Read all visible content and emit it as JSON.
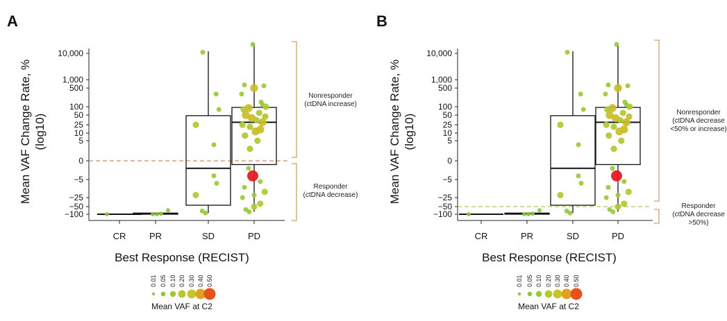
{
  "colors": {
    "bracket": "#c9a46a",
    "dashed_a": "#c98a6a",
    "dashed_b": "#b5c46a",
    "highlight": "#e8141e"
  },
  "legend": {
    "title": "Mean VAF at C2",
    "sizes": [
      {
        "label": "0.01",
        "color": "#8cc63f"
      },
      {
        "label": "0.05",
        "color": "#8cc63f"
      },
      {
        "label": "0.10",
        "color": "#9ac93b"
      },
      {
        "label": "0.20",
        "color": "#b5c92f"
      },
      {
        "label": "0.30",
        "color": "#cbc12a"
      },
      {
        "label": "0.40",
        "color": "#e0a020"
      },
      {
        "label": "0.50",
        "color": "#e8501e"
      }
    ]
  },
  "chart_data": [
    {
      "type": "box",
      "panel_label": "A",
      "ylabel_lines": [
        "Mean VAF Change Rate, %",
        "(log10)"
      ],
      "xlabel": "Best Response (RECIST)",
      "categories": [
        "CR",
        "PR",
        "SD",
        "PD"
      ],
      "yticks": [
        "10,000",
        "1,000",
        "500",
        "100",
        "50",
        "25",
        "10",
        "5",
        "0",
        "−5",
        "−25",
        "−50",
        "−100"
      ],
      "threshold": {
        "value": 0,
        "tick_label": "0"
      },
      "annotations": [
        {
          "group": "nonresponder",
          "lines": [
            "Nonresponder",
            "(ctDNA increase)"
          ]
        },
        {
          "group": "responder",
          "lines": [
            "Responder",
            "(ctDNA decrease)"
          ]
        }
      ],
      "boxes": [
        {
          "category": "CR",
          "q1": -100,
          "median": -100,
          "q3": -100,
          "whisker_low": -100,
          "whisker_high": -100
        },
        {
          "category": "PR",
          "q1": -100,
          "median": -97,
          "q3": -90,
          "whisker_low": -100,
          "whisker_high": -88
        },
        {
          "category": "SD",
          "q1": -45,
          "median": -2,
          "q3": 48,
          "whisker_low": -90,
          "whisker_high": 12000
        },
        {
          "category": "PD",
          "q1": -1,
          "median": 30,
          "q3": 95,
          "whisker_low": -80,
          "whisker_high": 22000
        }
      ],
      "points": [
        {
          "category": "CR",
          "value": -100,
          "vaf": 0.05,
          "jitter": -0.45
        },
        {
          "category": "PR",
          "value": -100,
          "vaf": 0.05,
          "jitter": -0.1
        },
        {
          "category": "PR",
          "value": -95,
          "vaf": 0.05,
          "jitter": 0.2
        },
        {
          "category": "PR",
          "value": -70,
          "vaf": 0.05,
          "jitter": 0.45
        },
        {
          "category": "PR",
          "value": -100,
          "vaf": 0.05,
          "jitter": 0.05
        },
        {
          "category": "SD",
          "value": 11000,
          "vaf": 0.1,
          "jitter": -0.2
        },
        {
          "category": "SD",
          "value": 300,
          "vaf": 0.1,
          "jitter": 0.28
        },
        {
          "category": "SD",
          "value": 80,
          "vaf": 0.1,
          "jitter": 0.38
        },
        {
          "category": "SD",
          "value": 25,
          "vaf": 0.2,
          "jitter": -0.45
        },
        {
          "category": "SD",
          "value": 4,
          "vaf": 0.1,
          "jitter": 0.2
        },
        {
          "category": "SD",
          "value": -4,
          "vaf": 0.1,
          "jitter": 0.2
        },
        {
          "category": "SD",
          "value": -7,
          "vaf": 0.1,
          "jitter": 0.3
        },
        {
          "category": "SD",
          "value": -20,
          "vaf": 0.2,
          "jitter": -0.45
        },
        {
          "category": "SD",
          "value": -75,
          "vaf": 0.1,
          "jitter": -0.22
        },
        {
          "category": "SD",
          "value": -90,
          "vaf": 0.1,
          "jitter": -0.1
        },
        {
          "category": "PD",
          "value": 22000,
          "vaf": 0.1,
          "jitter": -0.05
        },
        {
          "category": "PD",
          "value": 650,
          "vaf": 0.1,
          "jitter": -0.35
        },
        {
          "category": "PD",
          "value": 500,
          "vaf": 0.3,
          "jitter": 0.0
        },
        {
          "category": "PD",
          "value": 600,
          "vaf": 0.1,
          "jitter": 0.35
        },
        {
          "category": "PD",
          "value": 300,
          "vaf": 0.1,
          "jitter": -0.45
        },
        {
          "category": "PD",
          "value": 150,
          "vaf": 0.1,
          "jitter": 0.25
        },
        {
          "category": "PD",
          "value": 120,
          "vaf": 0.1,
          "jitter": 0.3
        },
        {
          "category": "PD",
          "value": 100,
          "vaf": 0.2,
          "jitter": 0.42
        },
        {
          "category": "PD",
          "value": 90,
          "vaf": 0.3,
          "jitter": -0.2
        },
        {
          "category": "PD",
          "value": 80,
          "vaf": 0.2,
          "jitter": -0.38
        },
        {
          "category": "PD",
          "value": 60,
          "vaf": 0.2,
          "jitter": 0.18
        },
        {
          "category": "PD",
          "value": 50,
          "vaf": 0.3,
          "jitter": -0.3
        },
        {
          "category": "PD",
          "value": 45,
          "vaf": 0.2,
          "jitter": 0.4
        },
        {
          "category": "PD",
          "value": 40,
          "vaf": 0.3,
          "jitter": -0.08
        },
        {
          "category": "PD",
          "value": 35,
          "vaf": 0.2,
          "jitter": 0.08
        },
        {
          "category": "PD",
          "value": 30,
          "vaf": 0.3,
          "jitter": 0.3
        },
        {
          "category": "PD",
          "value": 25,
          "vaf": 0.2,
          "jitter": -0.42
        },
        {
          "category": "PD",
          "value": 20,
          "vaf": 0.2,
          "jitter": -0.15
        },
        {
          "category": "PD",
          "value": 15,
          "vaf": 0.3,
          "jitter": 0.22
        },
        {
          "category": "PD",
          "value": 12,
          "vaf": 0.3,
          "jitter": 0.05
        },
        {
          "category": "PD",
          "value": 8,
          "vaf": 0.2,
          "jitter": -0.33
        },
        {
          "category": "PD",
          "value": 5,
          "vaf": 0.2,
          "jitter": 0.12
        },
        {
          "category": "PD",
          "value": 3,
          "vaf": 0.2,
          "jitter": -0.15
        },
        {
          "category": "PD",
          "value": -2,
          "vaf": 0.1,
          "jitter": -0.2
        },
        {
          "category": "PD",
          "value": -4,
          "vaf": 0.5,
          "jitter": -0.05,
          "highlight": true
        },
        {
          "category": "PD",
          "value": -6,
          "vaf": 0.1,
          "jitter": 0.22
        },
        {
          "category": "PD",
          "value": -10,
          "vaf": 0.1,
          "jitter": -0.35
        },
        {
          "category": "PD",
          "value": -15,
          "vaf": 0.2,
          "jitter": 0.38
        },
        {
          "category": "PD",
          "value": -20,
          "vaf": 0.1,
          "jitter": 0.0
        },
        {
          "category": "PD",
          "value": -25,
          "vaf": 0.1,
          "jitter": -0.42
        },
        {
          "category": "PD",
          "value": -40,
          "vaf": 0.2,
          "jitter": 0.22
        },
        {
          "category": "PD",
          "value": -50,
          "vaf": 0.2,
          "jitter": 0.0
        },
        {
          "category": "PD",
          "value": -65,
          "vaf": 0.1,
          "jitter": -0.3
        },
        {
          "category": "PD",
          "value": -80,
          "vaf": 0.1,
          "jitter": -0.18
        }
      ]
    },
    {
      "type": "box",
      "panel_label": "B",
      "ylabel_lines": [
        "Mean VAF Change Rate, %",
        "(log10)"
      ],
      "xlabel": "Best Response (RECIST)",
      "categories": [
        "CR",
        "PR",
        "SD",
        "PD"
      ],
      "yticks": [
        "10,000",
        "1,000",
        "500",
        "100",
        "50",
        "25",
        "10",
        "5",
        "0",
        "−5",
        "−25",
        "−50",
        "−100"
      ],
      "threshold": {
        "value": -50,
        "tick_label": "−50"
      },
      "annotations": [
        {
          "group": "nonresponder",
          "lines": [
            "Nonresponder",
            "(ctDNA decrease",
            "<50% or increase)"
          ]
        },
        {
          "group": "responder",
          "lines": [
            "Responder",
            "(ctDNA decrease",
            ">50%)"
          ]
        }
      ],
      "boxes": [
        {
          "category": "CR",
          "q1": -100,
          "median": -100,
          "q3": -100,
          "whisker_low": -100,
          "whisker_high": -100
        },
        {
          "category": "PR",
          "q1": -100,
          "median": -97,
          "q3": -90,
          "whisker_low": -100,
          "whisker_high": -88
        },
        {
          "category": "SD",
          "q1": -45,
          "median": -2,
          "q3": 48,
          "whisker_low": -90,
          "whisker_high": 12000
        },
        {
          "category": "PD",
          "q1": -1,
          "median": 30,
          "q3": 95,
          "whisker_low": -80,
          "whisker_high": 22000
        }
      ],
      "points": [
        {
          "category": "CR",
          "value": -100,
          "vaf": 0.05,
          "jitter": -0.45
        },
        {
          "category": "PR",
          "value": -100,
          "vaf": 0.05,
          "jitter": -0.1
        },
        {
          "category": "PR",
          "value": -95,
          "vaf": 0.05,
          "jitter": 0.2
        },
        {
          "category": "PR",
          "value": -70,
          "vaf": 0.05,
          "jitter": 0.45
        },
        {
          "category": "PR",
          "value": -100,
          "vaf": 0.05,
          "jitter": 0.05
        },
        {
          "category": "SD",
          "value": 11000,
          "vaf": 0.1,
          "jitter": -0.2
        },
        {
          "category": "SD",
          "value": 300,
          "vaf": 0.1,
          "jitter": 0.28
        },
        {
          "category": "SD",
          "value": 80,
          "vaf": 0.1,
          "jitter": 0.38
        },
        {
          "category": "SD",
          "value": 25,
          "vaf": 0.2,
          "jitter": -0.45
        },
        {
          "category": "SD",
          "value": 4,
          "vaf": 0.1,
          "jitter": 0.2
        },
        {
          "category": "SD",
          "value": -4,
          "vaf": 0.1,
          "jitter": 0.2
        },
        {
          "category": "SD",
          "value": -7,
          "vaf": 0.1,
          "jitter": 0.3
        },
        {
          "category": "SD",
          "value": -20,
          "vaf": 0.2,
          "jitter": -0.45
        },
        {
          "category": "SD",
          "value": -75,
          "vaf": 0.1,
          "jitter": -0.22
        },
        {
          "category": "SD",
          "value": -90,
          "vaf": 0.1,
          "jitter": -0.1
        },
        {
          "category": "PD",
          "value": 22000,
          "vaf": 0.1,
          "jitter": -0.05
        },
        {
          "category": "PD",
          "value": 650,
          "vaf": 0.1,
          "jitter": -0.35
        },
        {
          "category": "PD",
          "value": 500,
          "vaf": 0.3,
          "jitter": 0.0
        },
        {
          "category": "PD",
          "value": 600,
          "vaf": 0.1,
          "jitter": 0.35
        },
        {
          "category": "PD",
          "value": 300,
          "vaf": 0.1,
          "jitter": -0.45
        },
        {
          "category": "PD",
          "value": 150,
          "vaf": 0.1,
          "jitter": 0.25
        },
        {
          "category": "PD",
          "value": 120,
          "vaf": 0.1,
          "jitter": 0.3
        },
        {
          "category": "PD",
          "value": 100,
          "vaf": 0.2,
          "jitter": 0.42
        },
        {
          "category": "PD",
          "value": 90,
          "vaf": 0.3,
          "jitter": -0.2
        },
        {
          "category": "PD",
          "value": 80,
          "vaf": 0.2,
          "jitter": -0.38
        },
        {
          "category": "PD",
          "value": 60,
          "vaf": 0.2,
          "jitter": 0.18
        },
        {
          "category": "PD",
          "value": 50,
          "vaf": 0.3,
          "jitter": -0.3
        },
        {
          "category": "PD",
          "value": 45,
          "vaf": 0.2,
          "jitter": 0.4
        },
        {
          "category": "PD",
          "value": 40,
          "vaf": 0.3,
          "jitter": -0.08
        },
        {
          "category": "PD",
          "value": 35,
          "vaf": 0.2,
          "jitter": 0.08
        },
        {
          "category": "PD",
          "value": 30,
          "vaf": 0.3,
          "jitter": 0.3
        },
        {
          "category": "PD",
          "value": 25,
          "vaf": 0.2,
          "jitter": -0.42
        },
        {
          "category": "PD",
          "value": 20,
          "vaf": 0.2,
          "jitter": -0.15
        },
        {
          "category": "PD",
          "value": 15,
          "vaf": 0.3,
          "jitter": 0.22
        },
        {
          "category": "PD",
          "value": 12,
          "vaf": 0.3,
          "jitter": 0.05
        },
        {
          "category": "PD",
          "value": 8,
          "vaf": 0.2,
          "jitter": -0.33
        },
        {
          "category": "PD",
          "value": 5,
          "vaf": 0.2,
          "jitter": 0.12
        },
        {
          "category": "PD",
          "value": 3,
          "vaf": 0.2,
          "jitter": -0.15
        },
        {
          "category": "PD",
          "value": -2,
          "vaf": 0.1,
          "jitter": -0.2
        },
        {
          "category": "PD",
          "value": -4,
          "vaf": 0.5,
          "jitter": -0.05,
          "highlight": true
        },
        {
          "category": "PD",
          "value": -6,
          "vaf": 0.1,
          "jitter": 0.22
        },
        {
          "category": "PD",
          "value": -10,
          "vaf": 0.1,
          "jitter": -0.35
        },
        {
          "category": "PD",
          "value": -15,
          "vaf": 0.2,
          "jitter": 0.38
        },
        {
          "category": "PD",
          "value": -20,
          "vaf": 0.1,
          "jitter": 0.0
        },
        {
          "category": "PD",
          "value": -25,
          "vaf": 0.1,
          "jitter": -0.42
        },
        {
          "category": "PD",
          "value": -40,
          "vaf": 0.2,
          "jitter": 0.22
        },
        {
          "category": "PD",
          "value": -50,
          "vaf": 0.2,
          "jitter": 0.0
        },
        {
          "category": "PD",
          "value": -65,
          "vaf": 0.1,
          "jitter": -0.3
        },
        {
          "category": "PD",
          "value": -80,
          "vaf": 0.1,
          "jitter": -0.18
        }
      ]
    }
  ]
}
